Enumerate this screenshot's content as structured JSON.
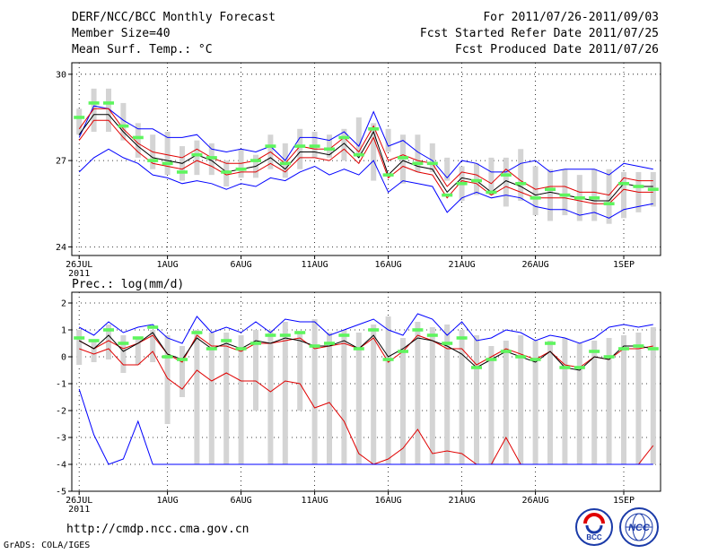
{
  "header": {
    "title": "DERF/NCC/BCC Monthly Forecast",
    "member_size": "Member Size=40",
    "variable": "Mean Surf. Temp.: °C",
    "period": "For 2011/07/26-2011/09/03",
    "started": "Fcst Started Refer Date 2011/07/25",
    "produced": "Fcst Produced Date 2011/07/26"
  },
  "footer": {
    "url": "http://cmdp.ncc.cma.gov.cn",
    "credit": "GrADS: COLA/IGES",
    "logo_bcc": "BCC",
    "logo_ncc": "NCC"
  },
  "chart_data": [
    {
      "type": "line",
      "name": "temperature",
      "title": "Mean Surf. Temp.: °C",
      "xlabel": "",
      "ylabel": "°C",
      "ylim": [
        23.7,
        30.4
      ],
      "yticks": [
        24,
        27,
        30
      ],
      "xlim": [
        0.5,
        40.5
      ],
      "x_ticks": [
        {
          "x": 1,
          "label": "26JUL",
          "sub": "2011"
        },
        {
          "x": 7,
          "label": "1AUG"
        },
        {
          "x": 12,
          "label": "6AUG"
        },
        {
          "x": 17,
          "label": "11AUG"
        },
        {
          "x": 22,
          "label": "16AUG"
        },
        {
          "x": 27,
          "label": "21AUG"
        },
        {
          "x": 32,
          "label": "26AUG"
        },
        {
          "x": 38,
          "label": "1SEP"
        }
      ],
      "grid": true,
      "x": [
        1,
        2,
        3,
        4,
        5,
        6,
        7,
        8,
        9,
        10,
        11,
        12,
        13,
        14,
        15,
        16,
        17,
        18,
        19,
        20,
        21,
        22,
        23,
        24,
        25,
        26,
        27,
        28,
        29,
        30,
        31,
        32,
        33,
        34,
        35,
        36,
        37,
        38,
        39,
        40
      ],
      "boxes": {
        "low": [
          27.9,
          28.0,
          28.0,
          27.7,
          27.1,
          26.7,
          26.5,
          26.3,
          26.5,
          26.5,
          26.1,
          26.4,
          26.4,
          26.7,
          26.4,
          26.7,
          27.1,
          27.1,
          27.0,
          27.2,
          26.3,
          27.3,
          26.2,
          26.6,
          26.6,
          26.3,
          25.6,
          25.8,
          25.8,
          25.4,
          25.6,
          25.1,
          24.9,
          25.1,
          24.9,
          24.9,
          24.8,
          25.0,
          25.2,
          25.4
        ],
        "high": [
          28.8,
          29.5,
          29.5,
          29.0,
          28.3,
          27.9,
          28.0,
          27.5,
          27.7,
          27.6,
          27.0,
          27.4,
          27.2,
          27.9,
          27.6,
          28.1,
          28.0,
          27.9,
          28.1,
          28.5,
          28.3,
          28.1,
          27.9,
          27.9,
          27.6,
          27.1,
          26.8,
          26.9,
          27.1,
          27.1,
          27.4,
          26.8,
          26.7,
          26.7,
          26.5,
          26.7,
          26.7,
          26.6,
          26.6,
          26.6
        ]
      },
      "observed": [
        28.5,
        29.0,
        29.0,
        28.2,
        27.8,
        27.0,
        26.9,
        26.6,
        27.2,
        27.1,
        26.6,
        26.7,
        27.0,
        27.5,
        26.9,
        27.5,
        27.5,
        27.4,
        27.8,
        27.2,
        28.1,
        26.5,
        27.1,
        26.9,
        26.9,
        25.8,
        26.2,
        26.3,
        25.9,
        26.5,
        26.2,
        25.7,
        26.0,
        25.8,
        25.7,
        25.7,
        25.5,
        26.2,
        26.1,
        26.0
      ],
      "series": [
        {
          "name": "ensemble-max",
          "color": "#0000ff",
          "values": [
            27.8,
            28.9,
            28.8,
            28.4,
            28.1,
            28.1,
            27.8,
            27.8,
            27.9,
            27.4,
            27.3,
            27.4,
            27.3,
            27.5,
            27.0,
            27.8,
            27.8,
            27.7,
            28.0,
            27.5,
            28.7,
            27.5,
            27.7,
            27.3,
            27.0,
            26.4,
            27.0,
            26.9,
            26.6,
            26.6,
            26.9,
            27.0,
            26.6,
            26.7,
            26.7,
            26.7,
            26.5,
            26.9,
            26.8,
            26.7
          ]
        },
        {
          "name": "upper",
          "color": "#e00000",
          "values": [
            28.1,
            28.8,
            28.8,
            28.1,
            27.6,
            27.3,
            27.2,
            27.1,
            27.4,
            27.1,
            26.9,
            26.9,
            27.0,
            27.3,
            26.9,
            27.5,
            27.4,
            27.4,
            27.8,
            27.3,
            28.2,
            27.0,
            27.2,
            27.0,
            26.9,
            26.1,
            26.6,
            26.5,
            26.2,
            26.7,
            26.3,
            26.0,
            26.1,
            26.1,
            25.9,
            25.9,
            25.8,
            26.4,
            26.3,
            26.3
          ]
        },
        {
          "name": "ensemble-mean",
          "color": "#000000",
          "values": [
            27.9,
            28.6,
            28.6,
            28.0,
            27.5,
            27.1,
            27.0,
            26.9,
            27.2,
            27.0,
            26.6,
            26.7,
            26.8,
            27.1,
            26.7,
            27.3,
            27.3,
            27.2,
            27.6,
            27.1,
            28.0,
            26.5,
            27.0,
            26.8,
            26.7,
            25.9,
            26.4,
            26.3,
            25.9,
            26.3,
            26.1,
            25.8,
            25.9,
            25.8,
            25.7,
            25.6,
            25.6,
            26.2,
            26.1,
            26.1
          ]
        },
        {
          "name": "lower",
          "color": "#e00000",
          "values": [
            27.7,
            28.4,
            28.4,
            27.8,
            27.3,
            26.9,
            26.8,
            26.7,
            27.0,
            26.8,
            26.5,
            26.6,
            26.6,
            26.9,
            26.6,
            27.1,
            27.1,
            27.0,
            27.4,
            26.9,
            27.8,
            26.4,
            26.8,
            26.6,
            26.5,
            25.7,
            26.3,
            26.2,
            25.8,
            26.1,
            25.9,
            25.7,
            25.7,
            25.7,
            25.6,
            25.5,
            25.5,
            26.0,
            25.9,
            25.9
          ]
        },
        {
          "name": "ensemble-min",
          "color": "#0000ff",
          "values": [
            26.6,
            27.1,
            27.4,
            27.1,
            26.9,
            26.5,
            26.4,
            26.2,
            26.3,
            26.2,
            26.0,
            26.2,
            26.1,
            26.4,
            26.3,
            26.6,
            26.8,
            26.5,
            26.7,
            26.5,
            27.0,
            25.9,
            26.3,
            26.2,
            26.1,
            25.2,
            25.7,
            25.9,
            25.7,
            25.8,
            25.7,
            25.4,
            25.3,
            25.3,
            25.1,
            25.2,
            25.0,
            25.3,
            25.4,
            25.5
          ]
        }
      ]
    },
    {
      "type": "line",
      "name": "precipitation",
      "title": "Prec.: log(mm/d)",
      "xlabel": "",
      "ylabel": "log(mm/d)",
      "ylim": [
        -5,
        2.4
      ],
      "yticks": [
        2,
        1,
        0,
        -1,
        -2,
        -3,
        -4,
        -5
      ],
      "xlim": [
        0.5,
        40.5
      ],
      "x_ticks": [
        {
          "x": 1,
          "label": "26JUL",
          "sub": "2011"
        },
        {
          "x": 7,
          "label": "1AUG"
        },
        {
          "x": 12,
          "label": "6AUG"
        },
        {
          "x": 17,
          "label": "11AUG"
        },
        {
          "x": 22,
          "label": "16AUG"
        },
        {
          "x": 27,
          "label": "21AUG"
        },
        {
          "x": 32,
          "label": "26AUG"
        },
        {
          "x": 38,
          "label": "1SEP"
        }
      ],
      "grid": true,
      "x": [
        1,
        2,
        3,
        4,
        5,
        6,
        7,
        8,
        9,
        10,
        11,
        12,
        13,
        14,
        15,
        16,
        17,
        18,
        19,
        20,
        21,
        22,
        23,
        24,
        25,
        26,
        27,
        28,
        29,
        30,
        31,
        32,
        33,
        34,
        35,
        36,
        37,
        38,
        39,
        40
      ],
      "boxes": {
        "low": [
          -0.3,
          -0.2,
          -0.1,
          -0.6,
          -0.3,
          -0.2,
          -2.5,
          -1.5,
          -4,
          -4,
          -4,
          -4,
          -2,
          -4,
          -4,
          -2,
          -4,
          -4,
          -4,
          -4,
          -4,
          -4,
          -4,
          -4,
          -4,
          -4,
          -4,
          -4,
          -4,
          -4,
          -4,
          -4,
          -4,
          -4,
          -4,
          -4,
          -4,
          -4,
          -4,
          -4
        ],
        "high": [
          1.0,
          0.6,
          1.2,
          0.8,
          0.7,
          1.0,
          0.8,
          0.4,
          1.0,
          0.9,
          0.9,
          0.8,
          1.0,
          1.0,
          1.3,
          0.9,
          1.4,
          0.9,
          1.0,
          0.9,
          1.2,
          1.5,
          0.7,
          1.3,
          1.1,
          1.2,
          1.0,
          0.8,
          0.4,
          0.6,
          0.8,
          0.6,
          0.6,
          0.7,
          0.5,
          0.6,
          0.7,
          0.8,
          0.9,
          1.1
        ]
      },
      "observed": [
        0.7,
        0.6,
        1.0,
        0.5,
        0.7,
        1.1,
        0.0,
        -0.1,
        0.9,
        0.3,
        0.6,
        0.3,
        0.5,
        0.8,
        0.8,
        0.9,
        0.4,
        0.5,
        0.8,
        0.3,
        1.0,
        -0.1,
        0.2,
        1.0,
        0.8,
        0.5,
        0.7,
        -0.4,
        -0.1,
        0.2,
        0.0,
        -0.1,
        0.5,
        -0.4,
        -0.4,
        0.2,
        0.0,
        0.3,
        0.4,
        0.3
      ],
      "series": [
        {
          "name": "ensemble-max",
          "color": "#0000ff",
          "values": [
            1.1,
            0.8,
            1.3,
            0.9,
            1.1,
            1.2,
            0.7,
            0.5,
            1.5,
            0.9,
            1.1,
            0.9,
            1.3,
            0.9,
            1.4,
            1.3,
            1.3,
            0.8,
            1.0,
            1.2,
            1.4,
            1.0,
            0.8,
            1.6,
            1.4,
            0.8,
            1.3,
            0.6,
            0.7,
            1.0,
            0.9,
            0.6,
            0.8,
            0.7,
            0.5,
            0.7,
            1.1,
            1.2,
            1.1,
            1.2
          ]
        },
        {
          "name": "upper",
          "color": "#e00000",
          "values": [
            0.6,
            0.3,
            0.6,
            0.3,
            0.5,
            0.8,
            0.1,
            -0.2,
            0.8,
            0.4,
            0.4,
            0.2,
            0.5,
            0.5,
            0.6,
            0.7,
            0.3,
            0.4,
            0.5,
            0.3,
            0.7,
            -0.2,
            0.2,
            0.8,
            0.6,
            0.3,
            0.3,
            -0.3,
            0.0,
            0.3,
            0.1,
            -0.1,
            0.2,
            -0.3,
            -0.4,
            0.0,
            -0.1,
            0.3,
            0.3,
            0.4
          ]
        },
        {
          "name": "ensemble-mean",
          "color": "#000000",
          "values": [
            0.6,
            0.3,
            0.8,
            0.2,
            0.5,
            0.9,
            0.1,
            -0.1,
            0.7,
            0.3,
            0.5,
            0.3,
            0.6,
            0.5,
            0.7,
            0.6,
            0.4,
            0.4,
            0.6,
            0.3,
            0.8,
            0.0,
            0.3,
            0.7,
            0.6,
            0.4,
            0.1,
            -0.4,
            -0.1,
            0.2,
            0.0,
            -0.2,
            0.2,
            -0.4,
            -0.5,
            0.0,
            -0.1,
            0.4,
            0.4,
            0.3
          ]
        },
        {
          "name": "lower",
          "color": "#e00000",
          "values": [
            0.3,
            0.1,
            0.3,
            -0.3,
            -0.3,
            0.2,
            -0.8,
            -1.2,
            -0.5,
            -0.9,
            -0.6,
            -0.9,
            -0.9,
            -1.3,
            -0.9,
            -1.0,
            -1.9,
            -1.7,
            -2.4,
            -3.6,
            -4.0,
            -3.8,
            -3.4,
            -2.7,
            -3.6,
            -3.5,
            -3.6,
            -4.0,
            -4.0,
            -3.0,
            -4.0,
            -4.0,
            -4.0,
            -4.0,
            -4.0,
            -4.0,
            -4.0,
            -4.0,
            -4.0,
            -3.3
          ]
        },
        {
          "name": "ensemble-min",
          "color": "#0000ff",
          "values": [
            -1.2,
            -2.9,
            -4.0,
            -3.8,
            -2.4,
            -4.0,
            -4.0,
            -4.0,
            -4.0,
            -4.0,
            -4.0,
            -4.0,
            -4.0,
            -4.0,
            -4.0,
            -4.0,
            -4.0,
            -4.0,
            -4.0,
            -4.0,
            -4.0,
            -4.0,
            -4.0,
            -4.0,
            -4.0,
            -4.0,
            -4.0,
            -4.0,
            -4.0,
            -4.0,
            -4.0,
            -4.0,
            -4.0,
            -4.0,
            -4.0,
            -4.0,
            -4.0,
            -4.0,
            -4.0,
            -4.0
          ]
        }
      ]
    }
  ]
}
